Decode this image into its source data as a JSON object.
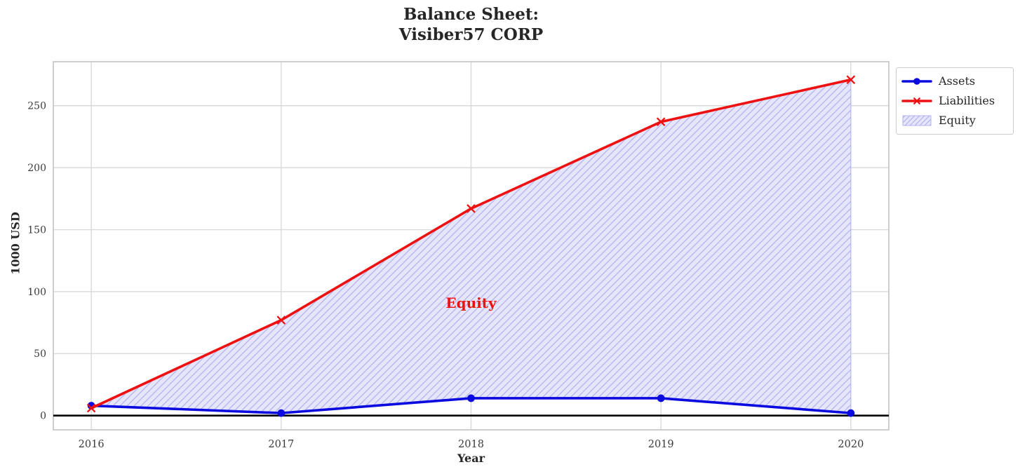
{
  "chart_data": {
    "type": "line",
    "title": "Balance Sheet:\nVisiber57 CORP",
    "title_lines": [
      "Balance Sheet:",
      "Visiber57 CORP"
    ],
    "xlabel": "Year",
    "ylabel": "1000 USD",
    "x": [
      2016,
      2017,
      2018,
      2019,
      2020
    ],
    "xticks": [
      2016,
      2017,
      2018,
      2019,
      2020
    ],
    "xtick_labels": [
      "2016",
      "2017",
      "2018",
      "2019",
      "2020"
    ],
    "yticks": [
      0,
      50,
      100,
      150,
      200,
      250
    ],
    "xlim": [
      2015.8,
      2020.2
    ],
    "ylim": [
      -11.5,
      285.5
    ],
    "grid": true,
    "series": [
      {
        "name": "Assets",
        "values": [
          8,
          2,
          14,
          14,
          2
        ],
        "color": "#0b0bdf",
        "marker": "circle",
        "line_width": 3.6
      },
      {
        "name": "Liabilities",
        "values": [
          6,
          77,
          167,
          237,
          271
        ],
        "color": "#ee1111",
        "marker": "x",
        "line_width": 3.6
      }
    ],
    "fill_between": {
      "label": "Equity",
      "upper_series": "Liabilities",
      "lower_series": "Assets",
      "fill_color": "#e6e6fa",
      "hatch": "/",
      "hatch_color": "#b2b2f0"
    },
    "annotation": {
      "text": "Equity",
      "x": 2018,
      "y": 91,
      "color": "#ee1111"
    },
    "zero_line": {
      "y": 0,
      "color": "#000000"
    },
    "legend_position": "outside upper right",
    "legend_entries": [
      "Assets",
      "Liabilities",
      "Equity"
    ],
    "colors": {
      "grid": "#d9d9d9",
      "spine": "#c8c8c8",
      "tick_text": "#3a3a3a"
    }
  }
}
